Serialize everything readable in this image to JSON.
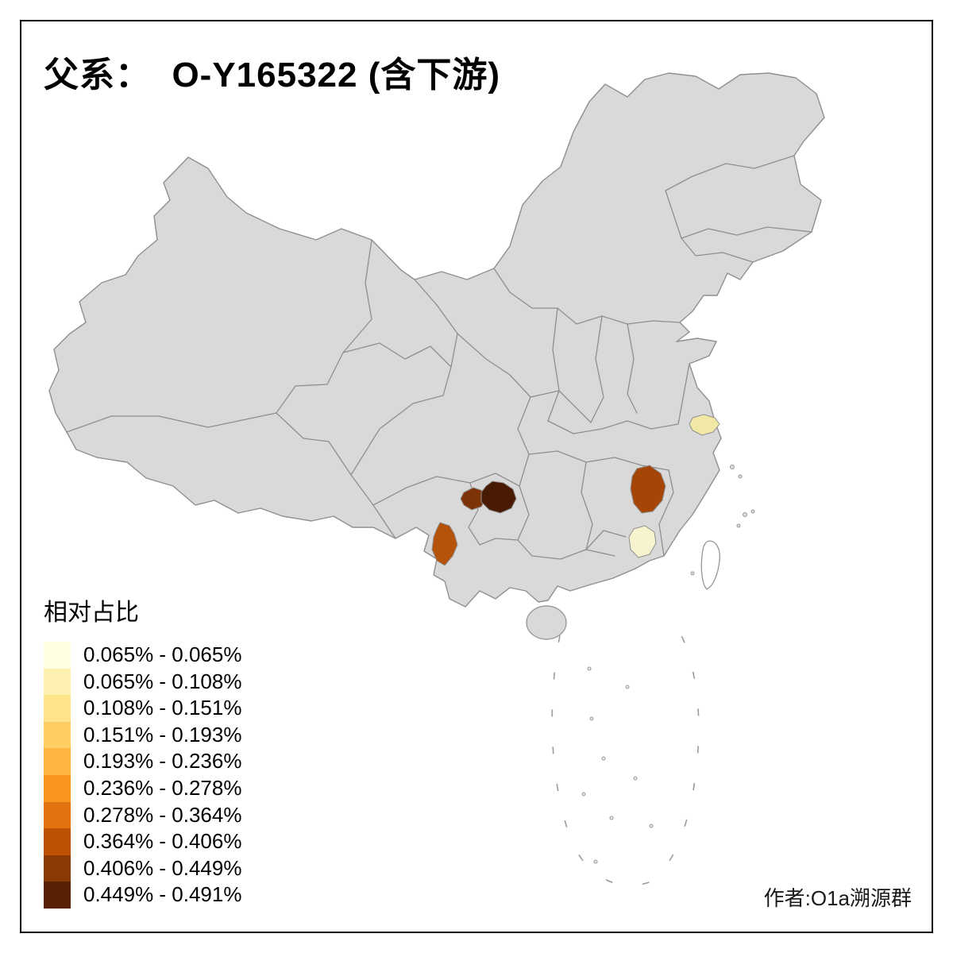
{
  "title": "父系：  O-Y165322 (含下游)",
  "legend": {
    "title": "相对占比",
    "items": [
      {
        "label": "0.065% - 0.065%",
        "color": "#FFFFE3"
      },
      {
        "label": "0.065% - 0.108%",
        "color": "#FEF0AE"
      },
      {
        "label": "0.108% - 0.151%",
        "color": "#FEE38B"
      },
      {
        "label": "0.151% - 0.193%",
        "color": "#FECE65"
      },
      {
        "label": "0.193% - 0.236%",
        "color": "#FEB43E"
      },
      {
        "label": "0.236% - 0.278%",
        "color": "#F9961E"
      },
      {
        "label": "0.278% - 0.364%",
        "color": "#E0720F"
      },
      {
        "label": "0.364% - 0.406%",
        "color": "#BC5202"
      },
      {
        "label": "0.406% - 0.449%",
        "color": "#8C3A03"
      },
      {
        "label": "0.449% - 0.491%",
        "color": "#582304"
      }
    ]
  },
  "credit": "作者:O1a溯源群",
  "map": {
    "base_fill": "#D9D9D9",
    "border_stroke": "#8F8F8F",
    "highlighted_regions": [
      {
        "id": "region-southwest-darkest",
        "color": "#4A1B04"
      },
      {
        "id": "region-southwest-dark",
        "color": "#7E3306"
      },
      {
        "id": "region-yunnan",
        "color": "#B5530A"
      },
      {
        "id": "region-jiangxi",
        "color": "#A64508"
      },
      {
        "id": "region-jiangsu-pale",
        "color": "#F2E8A6"
      },
      {
        "id": "region-southeast-pale",
        "color": "#F8F3CF"
      }
    ]
  }
}
